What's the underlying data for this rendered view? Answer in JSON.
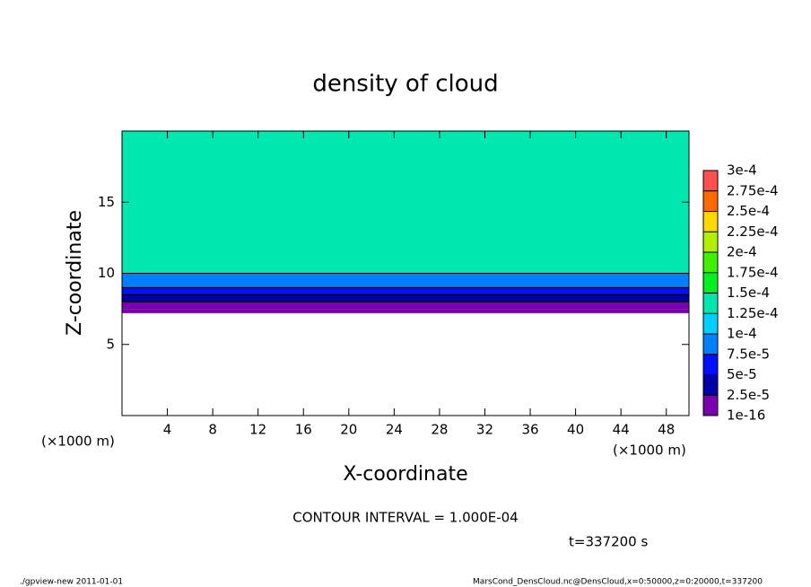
{
  "chart_data": {
    "type": "contour",
    "title": "density of cloud",
    "x_label": "X-coordinate",
    "y_label": "Z-coordinate",
    "x_unit": "(×1000 m)",
    "y_unit": "(×1000 m)",
    "contour_note": "CONTOUR INTERVAL = 1.000E-04",
    "time_note": "t=337200 s",
    "footer_left": "./gpview-new  2011-01-01",
    "footer_right": "MarsCond_DensCloud.nc@DensCloud,x=0:50000,z=0:20000,t=337200",
    "xlim": [
      0,
      50
    ],
    "xticks": [
      4,
      8,
      12,
      16,
      20,
      24,
      28,
      32,
      36,
      40,
      44,
      48
    ],
    "ylim": [
      0,
      20
    ],
    "yticks": [
      5,
      10,
      15
    ],
    "profile": {
      "z": [
        7.2,
        7.5,
        8.0,
        8.5,
        9.0,
        10.0
      ],
      "values": [
        1e-06,
        1.5e-05,
        3e-05,
        5.5e-05,
        9e-05,
        0.00014
      ]
    },
    "cticks": [
      {
        "value": 1e-16,
        "label": "1e-16"
      },
      {
        "value": 2.5e-05,
        "label": "2.5e-5"
      },
      {
        "value": 5e-05,
        "label": "5e-5"
      },
      {
        "value": 7.5e-05,
        "label": "7.5e-5"
      },
      {
        "value": 0.0001,
        "label": "1e-4"
      },
      {
        "value": 0.000125,
        "label": "1.25e-4"
      },
      {
        "value": 0.00015,
        "label": "1.5e-4"
      },
      {
        "value": 0.000175,
        "label": "1.75e-4"
      },
      {
        "value": 0.0002,
        "label": "2e-4"
      },
      {
        "value": 0.000225,
        "label": "2.25e-4"
      },
      {
        "value": 0.00025,
        "label": "2.5e-4"
      },
      {
        "value": 0.000275,
        "label": "2.75e-4"
      },
      {
        "value": 0.0003,
        "label": "3e-4"
      }
    ],
    "colors": [
      "#7a00b0",
      "#0000a8",
      "#0010ff",
      "#0080ff",
      "#00d0ff",
      "#00e8b0",
      "#00f020",
      "#40f000",
      "#b0f000",
      "#ffd800",
      "#ff6a00",
      "#ff5050"
    ]
  }
}
